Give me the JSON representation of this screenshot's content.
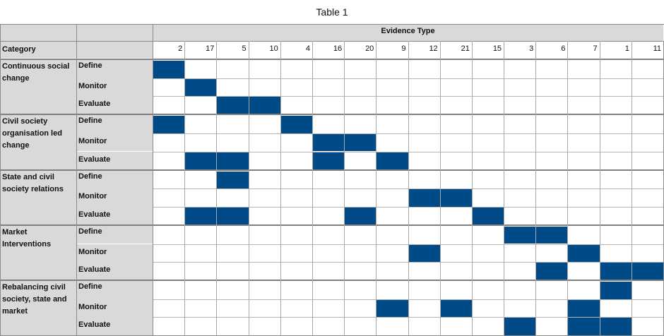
{
  "title": "Table 1",
  "header": {
    "evidence_type_label": "Evidence Type",
    "category_label": "Category"
  },
  "evidence_types": [
    "2",
    "17",
    "5",
    "10",
    "4",
    "16",
    "20",
    "9",
    "12",
    "21",
    "15",
    "3",
    "6",
    "7",
    "1",
    "11"
  ],
  "categories": [
    {
      "name": "Continuous social change",
      "rows": [
        {
          "stage": "Define",
          "marked": [
            "2"
          ]
        },
        {
          "stage": "Monitor",
          "marked": [
            "17"
          ]
        },
        {
          "stage": "Evaluate",
          "marked": [
            "5",
            "10"
          ]
        }
      ]
    },
    {
      "name": "Civil society organisation led change",
      "rows": [
        {
          "stage": "Define",
          "marked": [
            "2",
            "4"
          ]
        },
        {
          "stage": "Monitor",
          "marked": [
            "16",
            "20"
          ]
        },
        {
          "stage": "Evaluate",
          "marked": [
            "17",
            "5",
            "16",
            "9"
          ]
        }
      ]
    },
    {
      "name": "State and civil society relations",
      "rows": [
        {
          "stage": "Define",
          "marked": [
            "5"
          ]
        },
        {
          "stage": "Monitor",
          "marked": [
            "12",
            "21"
          ]
        },
        {
          "stage": "Evaluate",
          "marked": [
            "17",
            "5",
            "20",
            "15"
          ]
        }
      ]
    },
    {
      "name": "Market Interventions",
      "rows": [
        {
          "stage": "Define",
          "marked": [
            "3",
            "6"
          ]
        },
        {
          "stage": "Monitor",
          "marked": [
            "12",
            "7"
          ]
        },
        {
          "stage": "Evaluate",
          "marked": [
            "6",
            "1",
            "11"
          ]
        }
      ]
    },
    {
      "name": "Rebalancing civil society, state and market",
      "rows": [
        {
          "stage": "Define",
          "marked": [
            "1"
          ]
        },
        {
          "stage": "Monitor",
          "marked": [
            "9",
            "21",
            "7"
          ]
        },
        {
          "stage": "Evaluate",
          "marked": [
            "3",
            "7",
            "1"
          ]
        }
      ]
    }
  ],
  "colors": {
    "filled": "#004b87",
    "header_fill": "#d9d9d9",
    "grid_line": "#a8a8a8"
  }
}
